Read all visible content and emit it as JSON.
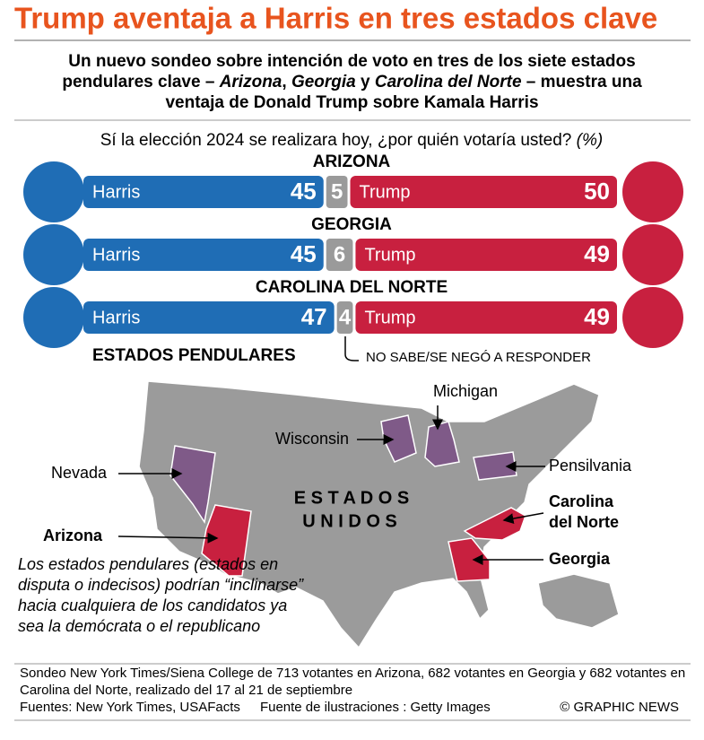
{
  "header": {
    "title": "Trump aventaja a Harris en tres estados clave"
  },
  "subtitle": [
    {
      "text": "Un nuevo sondeo sobre intención de voto en tres de los siete estados pendulares clave – "
    },
    {
      "text": "Arizona",
      "italic": true
    },
    {
      "text": ", "
    },
    {
      "text": "Georgia",
      "italic": true
    },
    {
      "text": " y "
    },
    {
      "text": "Carolina del Norte",
      "italic": true
    },
    {
      "text": " – muestra una ventaja de Donald Trump sobre Kamala Harris"
    }
  ],
  "question": "Sí la elección 2024 se realizara hoy, ¿por quién votaría usted?",
  "question_unit": "(%)",
  "candidates": {
    "harris": {
      "name": "Harris",
      "color": "#1f6db5"
    },
    "trump": {
      "name": "Trump",
      "color": "#c8203f"
    },
    "undecided_color": "#9a9a9a"
  },
  "states": [
    {
      "name": "ARIZONA",
      "harris": 45,
      "undecided": 5,
      "trump": 50
    },
    {
      "name": "GEORGIA",
      "harris": 45,
      "undecided": 6,
      "trump": 49
    },
    {
      "name": "CAROLINA DEL NORTE",
      "harris": 47,
      "undecided": 4,
      "trump": 49
    }
  ],
  "undecided_note": "NO SABE/SE NEGÓ A RESPONDER",
  "map": {
    "title": "ESTADOS PENDULARES",
    "country": [
      "E S T A D O S",
      "U N I D O S"
    ],
    "labels": {
      "michigan": "Michigan",
      "wisconsin": "Wisconsin",
      "nevada": "Nevada",
      "pennsylvania": "Pensilvania",
      "north_carolina": [
        "Carolina",
        "del Norte"
      ],
      "arizona": "Arizona",
      "georgia": "Georgia"
    }
  },
  "note": "Los estados pendulares (estados en disputa o indecisos) podrían “inclinarse” hacia cualquiera de los candidatos ya sea la demócrata o el republicano",
  "footer": {
    "source_note": "Sondeo New York Times/Siena College de 713 votantes en Arizona, 682 votantes en Georgia y 682 votantes en Carolina del Norte, realizado del 17 al 21 de septiembre",
    "sources": "Fuentes: New York Times, USAFacts",
    "illustrations": "Fuente de ilustraciones : Getty Images",
    "credit": "© GRAPHIC NEWS"
  }
}
